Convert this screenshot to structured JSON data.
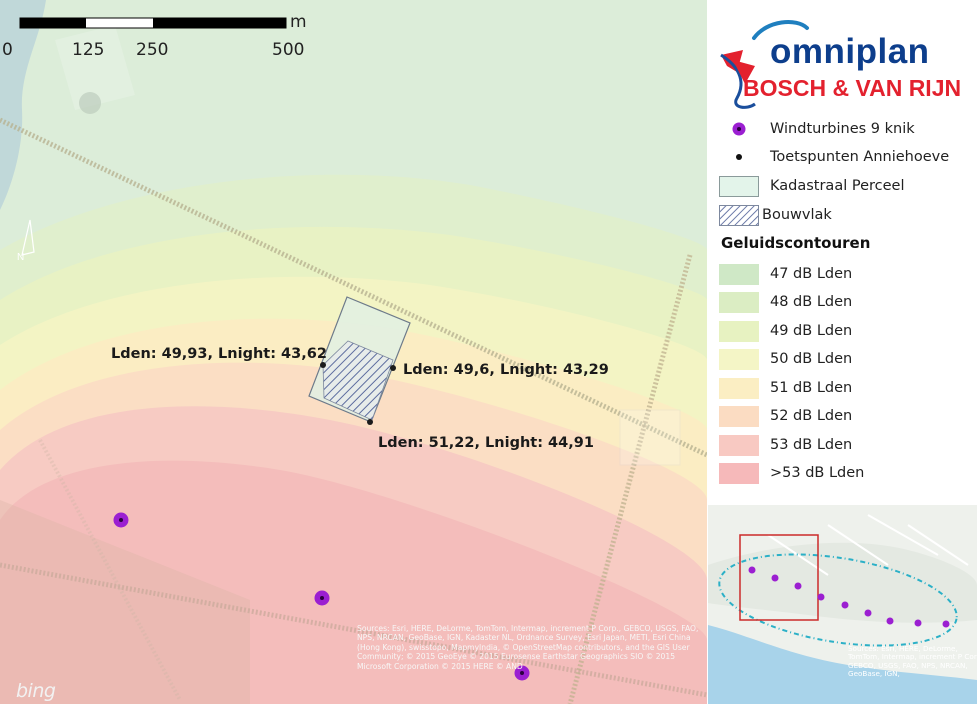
{
  "scalebar": {
    "unit": "m",
    "ticks": [
      "0",
      "125",
      "250",
      "500"
    ]
  },
  "north_label": "N",
  "measurement_points": [
    {
      "label": "Lden: 49,93, Lnight: 43,62"
    },
    {
      "label": "Lden: 49,6, Lnight: 43,29"
    },
    {
      "label": "Lden: 51,22, Lnight: 44,91"
    }
  ],
  "map_attribution": "Sources: Esri, HERE, DeLorme, TomTom, Intermap, increment P Corp., GEBCO, USGS, FAO, NPS, NRCAN, GeoBase, IGN, Kadaster NL, Ordnance Survey, Esri Japan, METI, Esri China (Hong Kong), swisstopo, MapmyIndia, © OpenStreetMap contributors, and the GIS User Community; © 2015 GeoEye © 2015 Eurosense Earthstar Geographics  SIO © 2015 Microsoft Corporation © 2015 HERE © AND",
  "bing_logo": "bing",
  "logo": {
    "top": "omniplan",
    "bottom": "BOSCH & VAN RIJN"
  },
  "legend": {
    "items": [
      {
        "label": "Windturbines 9 knik",
        "symbol": "purple-dot",
        "color": "#9b1fd1"
      },
      {
        "label": "Toetspunten Anniehoeve",
        "symbol": "black-dot",
        "color": "#111111"
      },
      {
        "label": "Kadastraal Perceel",
        "symbol": "parcel-box",
        "color": "#e3f4ea"
      },
      {
        "label": "Bouwvlak",
        "symbol": "hatch",
        "color": "#5b6b9e"
      }
    ],
    "contour_heading": "Geluidscontouren",
    "contours": [
      {
        "label": "47 dB Lden",
        "color": "#cfe8c6"
      },
      {
        "label": "48 dB Lden",
        "color": "#dbedc3"
      },
      {
        "label": "49 dB Lden",
        "color": "#e7f2c1"
      },
      {
        "label": "50 dB Lden",
        "color": "#f4f5c6"
      },
      {
        "label": "51 dB Lden",
        "color": "#fbeec3"
      },
      {
        "label": "52 dB Lden",
        "color": "#fbdcc2"
      },
      {
        "label": "53 dB Lden",
        "color": "#f8c9c2"
      },
      {
        "label": ">53 dB Lden",
        "color": "#f6b9ba"
      }
    ]
  },
  "inset_attribution": "Sources: Esri, HERE, DeLorme, TomTom, Intermap, increment P Corp., GEBCO, USGS, FAO, NPS, NRCAN, GeoBase, IGN,"
}
